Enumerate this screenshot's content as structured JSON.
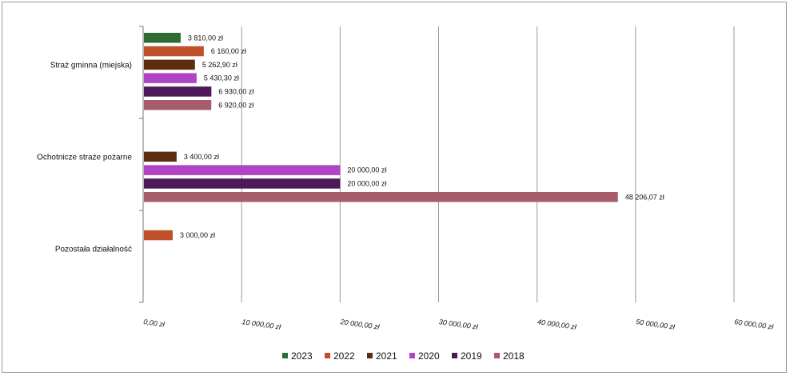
{
  "chart_data": {
    "type": "bar",
    "orientation": "horizontal",
    "categories": [
      "Straż gminna (miejska)",
      "Ochotnicze straże pożarne",
      "Pozostała działalność"
    ],
    "series": [
      {
        "name": "2023",
        "color": "#2e6b34",
        "values": [
          3810.0,
          null,
          null
        ],
        "labels": [
          "3 810,00 zł",
          "",
          ""
        ]
      },
      {
        "name": "2022",
        "color": "#c0502a",
        "values": [
          6160.0,
          null,
          3000.0
        ],
        "labels": [
          "6 160,00 zł",
          "",
          "3 000,00 zł"
        ]
      },
      {
        "name": "2021",
        "color": "#5c2d0e",
        "values": [
          5262.9,
          3400.0,
          null
        ],
        "labels": [
          "5 262,90 zł",
          "3 400,00 zł",
          ""
        ]
      },
      {
        "name": "2020",
        "color": "#b044c4",
        "values": [
          5430.3,
          20000.0,
          null
        ],
        "labels": [
          "5 430,30 zł",
          "20 000,00 zł",
          ""
        ]
      },
      {
        "name": "2019",
        "color": "#4f1859",
        "values": [
          6930.0,
          20000.0,
          null
        ],
        "labels": [
          "6 930,00 zł",
          "20 000,00 zł",
          ""
        ]
      },
      {
        "name": "2018",
        "color": "#a65c6b",
        "values": [
          6920.0,
          48206.07,
          null
        ],
        "labels": [
          "6 920,00 zł",
          "48 206,07 zł",
          ""
        ]
      }
    ],
    "xlim": [
      0,
      60000
    ],
    "x_ticks": [
      0,
      10000,
      20000,
      30000,
      40000,
      50000,
      60000
    ],
    "x_tick_labels": [
      "0,00 zł",
      "10 000,00 zł",
      "20 000,00 zł",
      "30 000,00 zł",
      "40 000,00 zł",
      "50 000,00 zł",
      "60 000,00 zł"
    ],
    "grid": "vertical",
    "legend": "bottom",
    "title": "",
    "xlabel": "",
    "ylabel": ""
  }
}
